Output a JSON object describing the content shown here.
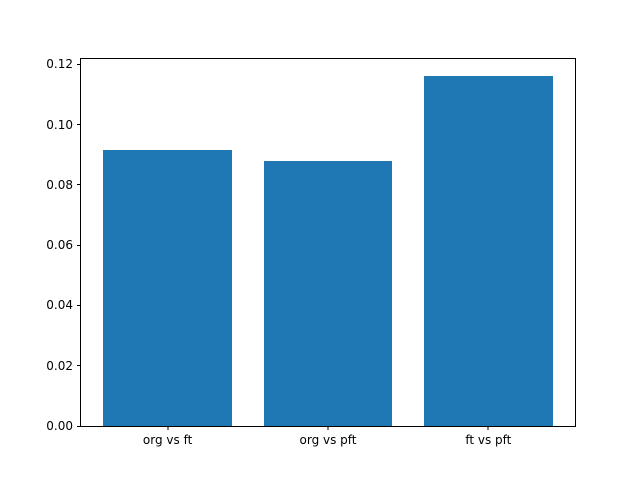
{
  "chart_data": {
    "type": "bar",
    "categories": [
      "org vs ft",
      "org vs pft",
      "ft vs pft"
    ],
    "values": [
      0.0915,
      0.088,
      0.116
    ],
    "title": "",
    "xlabel": "",
    "ylabel": "",
    "ylim": [
      0,
      0.1218
    ],
    "yticks": [
      0.0,
      0.02,
      0.04,
      0.06,
      0.08,
      0.1,
      0.12
    ],
    "ytick_format_decimals": 2,
    "bar_color": "#1f77b4",
    "bar_width_fraction": 0.8,
    "grid": false,
    "legend_position": "none"
  }
}
